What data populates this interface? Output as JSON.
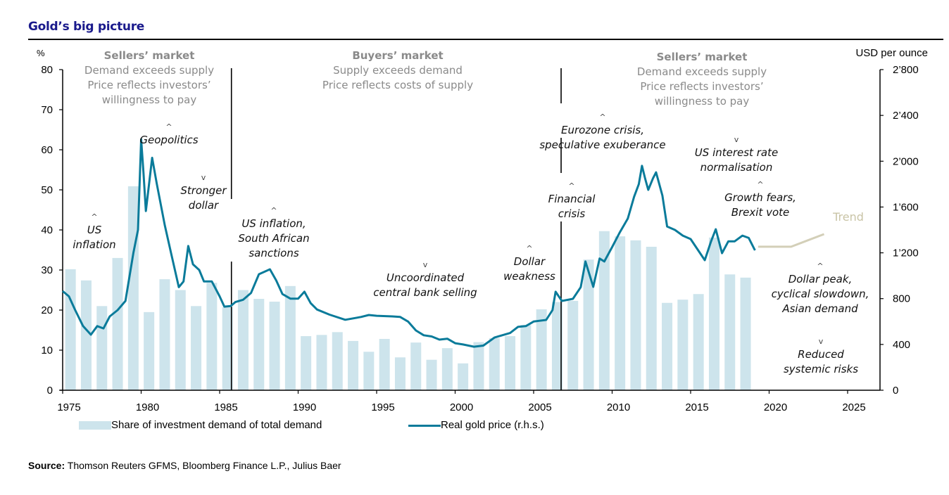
{
  "title": "Gold’s big picture",
  "source": {
    "label": "Source:",
    "text": " Thomson Reuters GFMS, Bloomberg Finance L.P., Julius Baer"
  },
  "colors": {
    "bars": "#cde4ec",
    "line": "#0a7b9a",
    "trend": "#d3cfb8",
    "regime_text": "#8a8a8a",
    "title": "#1a1a8c"
  },
  "chart_data": {
    "type": "bar+line",
    "title": "Gold’s big picture",
    "left_axis": {
      "label": "%",
      "ylim": [
        0,
        80
      ],
      "ticks": [
        0,
        10,
        20,
        30,
        40,
        50,
        60,
        70,
        80
      ]
    },
    "right_axis": {
      "label": "USD per ounce",
      "ylim": [
        0,
        2800
      ],
      "ticks": [
        0,
        400,
        800,
        1200,
        1600,
        2000,
        2400,
        2800
      ],
      "tick_labels": [
        "0",
        "400",
        "800",
        "1’200",
        "1’600",
        "2’000",
        "2’400",
        "2’800"
      ]
    },
    "x_axis": {
      "xlim": [
        1975,
        2026.5
      ],
      "ticks": [
        1975,
        1980,
        1985,
        1990,
        1995,
        2000,
        2005,
        2010,
        2015,
        2020,
        2025
      ]
    },
    "legend": {
      "placement": "bottom",
      "entries": [
        "Share of investment demand of total demand",
        "Real gold price (r.h.s.)"
      ]
    },
    "series": [
      {
        "name": "Share of investment demand of total demand",
        "type": "bar",
        "axis": "left",
        "x": [
          1975,
          1976,
          1977,
          1978,
          1979,
          1980,
          1981,
          1982,
          1983,
          1984,
          1985,
          1986,
          1987,
          1988,
          1989,
          1990,
          1991,
          1992,
          1993,
          1994,
          1995,
          1996,
          1997,
          1998,
          1999,
          2000,
          2001,
          2002,
          2003,
          2004,
          2005,
          2006,
          2007,
          2008,
          2009,
          2010,
          2011,
          2012,
          2013,
          2014,
          2015,
          2016,
          2017,
          2018
        ],
        "values": [
          30.2,
          27.4,
          21,
          33,
          50.9,
          19.5,
          27.7,
          25,
          21,
          26.8,
          20.7,
          25,
          22.8,
          22.1,
          26,
          13.5,
          13.8,
          14.5,
          12.3,
          9.6,
          12.8,
          8.2,
          11.9,
          7.6,
          10.5,
          6.7,
          12,
          13,
          13.5,
          16.3,
          20.2,
          22,
          22.3,
          32.6,
          39.7,
          38.4,
          37.4,
          35.8,
          21.8,
          22.6,
          24,
          38.1,
          28.9,
          28.1
        ]
      },
      {
        "name": "Real gold price (r.h.s.)",
        "type": "line",
        "axis": "right",
        "x": [
          1975,
          1975.4,
          1975.8,
          1976.3,
          1976.8,
          1977.2,
          1977.6,
          1978,
          1978.5,
          1979,
          1979.5,
          1979.8,
          1980.0,
          1980.15,
          1980.3,
          1980.5,
          1980.7,
          1981,
          1981.5,
          1981.9,
          1982.4,
          1982.7,
          1983.0,
          1983.3,
          1983.7,
          1984,
          1984.5,
          1985,
          1985.3,
          1985.7,
          1986,
          1986.5,
          1987,
          1987.5,
          1988.2,
          1988.6,
          1989,
          1989.5,
          1990,
          1990.4,
          1990.8,
          1991.2,
          1992,
          1993,
          1994,
          1994.5,
          1995,
          1996,
          1996.5,
          1997,
          1997.5,
          1998,
          1998.5,
          1999,
          1999.5,
          2000,
          2000.5,
          2001.2,
          2001.8,
          2002.5,
          2003,
          2003.5,
          2004,
          2004.5,
          2005,
          2005.8,
          2006.2,
          2006.4,
          2006.8,
          2007.5,
          2008,
          2008.3,
          2008.8,
          2009.2,
          2009.5,
          2010,
          2010.5,
          2011,
          2011.4,
          2011.7,
          2011.9,
          2012.1,
          2012.3,
          2012.6,
          2012.8,
          2013.2,
          2013.5,
          2014,
          2014.5,
          2015,
          2015.3,
          2015.9,
          2016.3,
          2016.6,
          2017.0,
          2017.4,
          2017.8,
          2018.3,
          2018.7,
          2019.1
        ],
        "values": [
          866,
          820,
          700,
          560,
          485,
          560,
          540,
          645,
          700,
          780,
          1197,
          1400,
          2190,
          1900,
          1565,
          1800,
          2030,
          1800,
          1443,
          1200,
          900,
          950,
          1260,
          1100,
          1050,
          950,
          950,
          820,
          730,
          735,
          770,
          790,
          850,
          1013,
          1056,
          960,
          840,
          800,
          800,
          860,
          760,
          705,
          660,
          615,
          640,
          657,
          650,
          645,
          640,
          600,
          522,
          480,
          470,
          442,
          450,
          411,
          400,
          380,
          390,
          460,
          480,
          500,
          553,
          560,
          600,
          614,
          700,
          860,
          780,
          798,
          900,
          1124,
          903,
          1150,
          1124,
          1250,
          1381,
          1500,
          1690,
          1800,
          1960,
          1850,
          1750,
          1850,
          1903,
          1700,
          1430,
          1400,
          1350,
          1320,
          1259,
          1136,
          1300,
          1406,
          1197,
          1300,
          1300,
          1350,
          1330,
          1222
        ]
      },
      {
        "name": "Trend",
        "type": "line",
        "axis": "right",
        "x": [
          2019.3,
          2021.4,
          2023.5
        ],
        "values": [
          1253,
          1253,
          1363
        ]
      }
    ],
    "dividers": [
      {
        "x": 1985.75,
        "label": "regime change"
      },
      {
        "x": 2006.75,
        "label": "regime change"
      }
    ],
    "regimes": [
      {
        "heading": "Sellers’ market",
        "lines": [
          "Demand exceeds supply",
          "Price reflects investors’",
          "willingness to pay"
        ]
      },
      {
        "heading": "Buyers’ market",
        "lines": [
          "Supply exceeds demand",
          "Price reflects costs of supply"
        ]
      },
      {
        "heading": "Sellers’ market",
        "lines": [
          "Demand exceeds supply",
          "Price reflects investors’",
          "willingness to pay"
        ]
      }
    ],
    "annotations": [
      {
        "marker": "^",
        "lines": [
          "US",
          "inflation"
        ]
      },
      {
        "marker": "^",
        "lines": [
          "Geopolitics"
        ]
      },
      {
        "marker": "v",
        "lines": [
          "Stronger",
          "dollar"
        ]
      },
      {
        "marker": "^",
        "lines": [
          "US inflation,",
          "South African",
          "sanctions"
        ]
      },
      {
        "marker": "v",
        "lines": [
          "Uncoordinated",
          "central bank selling"
        ]
      },
      {
        "marker": "^",
        "lines": [
          "Dollar",
          "weakness"
        ]
      },
      {
        "marker": "^",
        "lines": [
          "Financial",
          "crisis"
        ]
      },
      {
        "marker": "^",
        "lines": [
          "Eurozone crisis,",
          "speculative exuberance"
        ]
      },
      {
        "marker": "v",
        "lines": [
          "US interest rate",
          "normalisation"
        ]
      },
      {
        "marker": "^",
        "lines": [
          "Growth fears,",
          "Brexit vote"
        ]
      },
      {
        "marker": "",
        "lines": [
          "Trend"
        ]
      },
      {
        "marker": "^",
        "lines": [
          "Dollar peak,",
          "cyclical slowdown,",
          "Asian demand"
        ]
      },
      {
        "marker": "v",
        "lines": [
          "Reduced",
          "systemic risks"
        ]
      }
    ]
  }
}
